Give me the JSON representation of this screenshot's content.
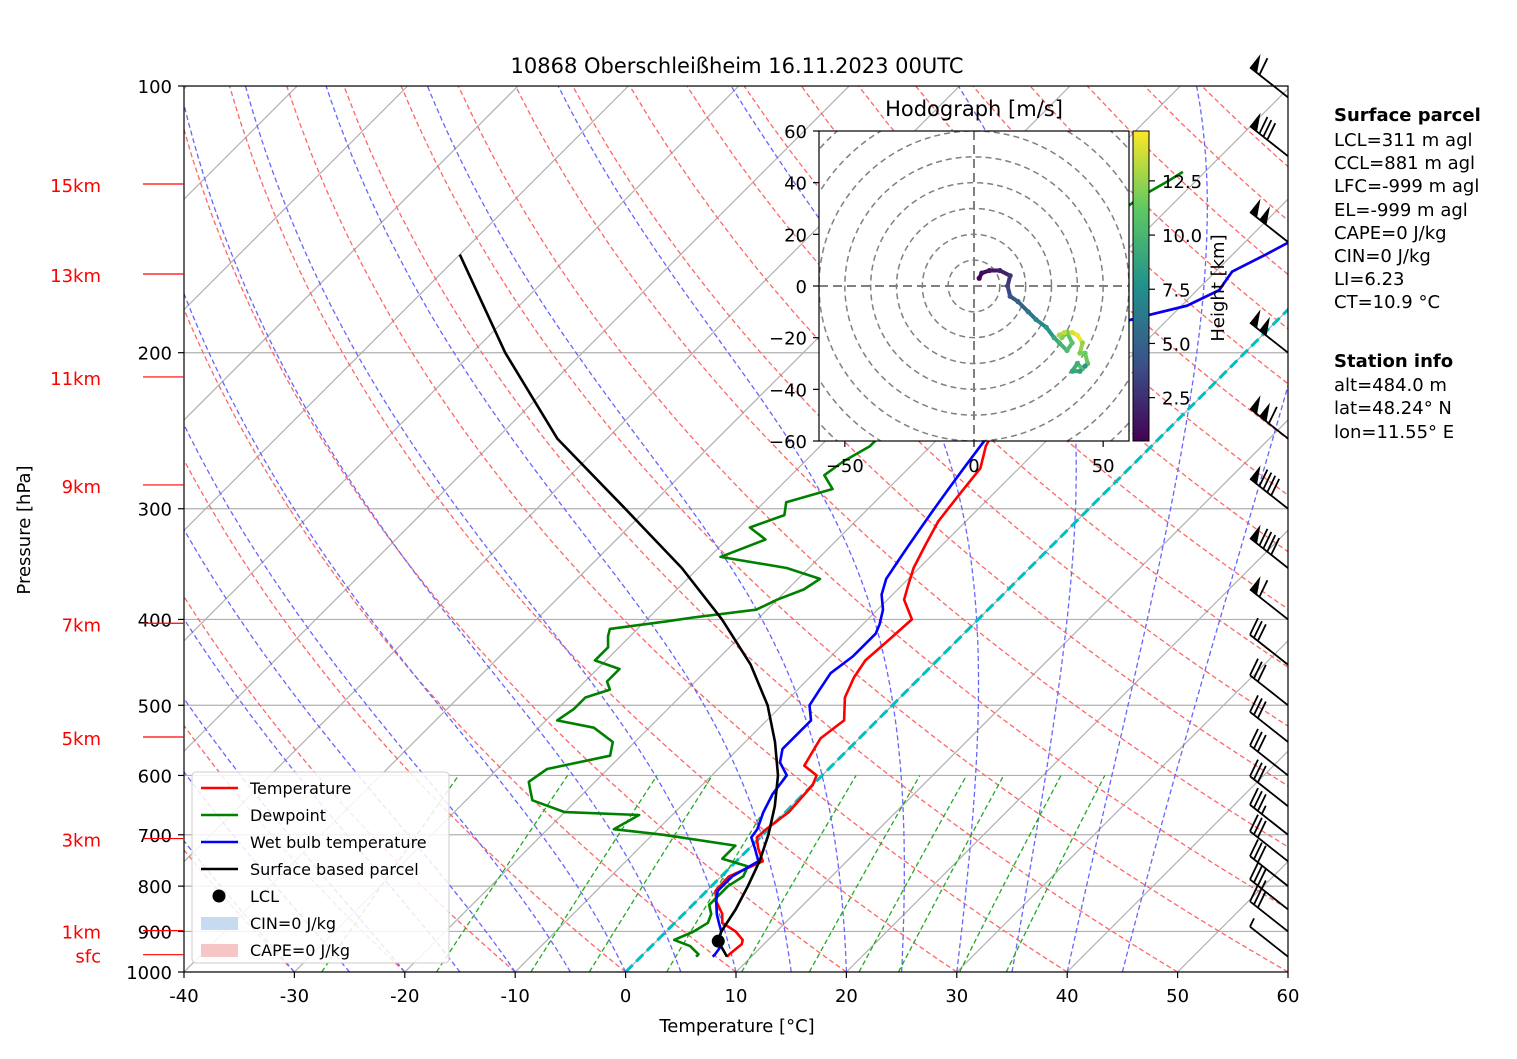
{
  "title": "10868 Oberschleißheim 16.11.2023 00UTC",
  "chart_data": {
    "type": "line",
    "subtype": "skew-T log-P diagram",
    "xlabel": "Temperature [°C]",
    "ylabel": "Pressure [hPa]",
    "xlim": [
      -40,
      60
    ],
    "ylim": [
      1000,
      100
    ],
    "y_scale": "log",
    "x_ticks": [
      -40,
      -30,
      -20,
      -10,
      0,
      10,
      20,
      30,
      40,
      50,
      60
    ],
    "y_ticks": [
      100,
      200,
      300,
      400,
      500,
      600,
      700,
      800,
      900,
      1000
    ],
    "height_labels": [
      {
        "label": "15km",
        "p": 129
      },
      {
        "label": "13km",
        "p": 163
      },
      {
        "label": "11km",
        "p": 213
      },
      {
        "label": "9km",
        "p": 282
      },
      {
        "label": "7km",
        "p": 404
      },
      {
        "label": "5km",
        "p": 543
      },
      {
        "label": "3km",
        "p": 707
      },
      {
        "label": "1km",
        "p": 898
      },
      {
        "label": "sfc",
        "p": 956
      }
    ],
    "series": [
      {
        "name": "Temperature",
        "color": "#ff0000",
        "points": [
          [
            7.8,
            961
          ],
          [
            7.8,
            955
          ],
          [
            8.0,
            930
          ],
          [
            7.7,
            920
          ],
          [
            6.3,
            900
          ],
          [
            4.3,
            880
          ],
          [
            3.5,
            860
          ],
          [
            1.8,
            832
          ],
          [
            0.8,
            810
          ],
          [
            0.7,
            780
          ],
          [
            2.4,
            750
          ],
          [
            0.8,
            725
          ],
          [
            -0.3,
            705
          ],
          [
            -0.2,
            690
          ],
          [
            0.3,
            660
          ],
          [
            0.0,
            615
          ],
          [
            -0.5,
            600
          ],
          [
            -2.5,
            585
          ],
          [
            -3.0,
            565
          ],
          [
            -3.5,
            545
          ],
          [
            -3.0,
            520
          ],
          [
            -5.0,
            490
          ],
          [
            -6.0,
            465
          ],
          [
            -6.5,
            445
          ],
          [
            -6.2,
            418
          ],
          [
            -6.0,
            400
          ],
          [
            -8.5,
            380
          ],
          [
            -9.5,
            365
          ],
          [
            -10.5,
            350
          ],
          [
            -11.5,
            330
          ],
          [
            -12.5,
            310
          ],
          [
            -13.0,
            290
          ],
          [
            -13.5,
            270
          ],
          [
            -15.0,
            255
          ],
          [
            -16.0,
            240
          ],
          [
            -17.0,
            230
          ],
          [
            -17.5,
            220
          ],
          [
            -18.0,
            210
          ],
          [
            -17.0,
            200
          ],
          [
            -16.5,
            195
          ],
          [
            -15.0,
            187
          ],
          [
            -12.5,
            182
          ],
          [
            -9.5,
            177
          ],
          [
            -8.0,
            170
          ],
          [
            -8.5,
            162
          ],
          [
            -7.0,
            155
          ],
          [
            -6.0,
            150
          ],
          [
            -4.5,
            145
          ],
          [
            -2.5,
            140
          ],
          [
            -1.5,
            136
          ],
          [
            -0.5,
            132
          ],
          [
            0.5,
            128
          ],
          [
            2.0,
            124
          ],
          [
            2.5,
            120
          ],
          [
            3.5,
            118
          ],
          [
            3.8,
            117
          ]
        ]
      },
      {
        "name": "Dewpoint",
        "color": "#008000",
        "points": [
          [
            5.0,
            961
          ],
          [
            5.0,
            955
          ],
          [
            3.5,
            935
          ],
          [
            1.5,
            920
          ],
          [
            2.5,
            900
          ],
          [
            3.0,
            880
          ],
          [
            2.5,
            860
          ],
          [
            1.5,
            840
          ],
          [
            1.5,
            800
          ],
          [
            2.0,
            780
          ],
          [
            1.5,
            760
          ],
          [
            -1.5,
            745
          ],
          [
            -1.5,
            720
          ],
          [
            -9.0,
            700
          ],
          [
            -14.0,
            690
          ],
          [
            -13.0,
            665
          ],
          [
            -20.0,
            660
          ],
          [
            -24.0,
            640
          ],
          [
            -25.0,
            625
          ],
          [
            -26.0,
            610
          ],
          [
            -25.5,
            590
          ],
          [
            -21.0,
            570
          ],
          [
            -22.0,
            550
          ],
          [
            -25.0,
            530
          ],
          [
            -29.0,
            520
          ],
          [
            -28.5,
            505
          ],
          [
            -28.5,
            490
          ],
          [
            -27.0,
            480
          ],
          [
            -28.0,
            470
          ],
          [
            -28.0,
            455
          ],
          [
            -31.0,
            445
          ],
          [
            -31.0,
            430
          ],
          [
            -32.0,
            418
          ],
          [
            -32.5,
            410
          ],
          [
            -28.0,
            402
          ],
          [
            -26.0,
            398
          ],
          [
            -21.0,
            390
          ],
          [
            -20.0,
            380
          ],
          [
            -18.5,
            370
          ],
          [
            -18.0,
            360
          ],
          [
            -22.0,
            350
          ],
          [
            -29.0,
            340
          ],
          [
            -26.5,
            325
          ],
          [
            -29.0,
            315
          ],
          [
            -27.0,
            305
          ],
          [
            -28.0,
            295
          ],
          [
            -25.0,
            285
          ],
          [
            -27.0,
            275
          ],
          [
            -26.5,
            265
          ],
          [
            -25.5,
            255
          ],
          [
            -25.5,
            240
          ],
          [
            -26.5,
            230
          ],
          [
            -26.5,
            220
          ],
          [
            -27.0,
            210
          ],
          [
            -25.5,
            200
          ],
          [
            -26.0,
            192
          ],
          [
            -27.0,
            185
          ],
          [
            -27.0,
            178
          ],
          [
            -27.5,
            170
          ],
          [
            -27.0,
            163
          ],
          [
            -27.0,
            155
          ],
          [
            -26.0,
            150
          ],
          [
            -25.5,
            144
          ],
          [
            -24.0,
            138
          ],
          [
            -23.5,
            133
          ],
          [
            -22.5,
            128
          ],
          [
            -22.0,
            125
          ]
        ]
      },
      {
        "name": "Wet bulb temperature",
        "color": "#0000ff",
        "points": [
          [
            6.5,
            961
          ],
          [
            6.5,
            955
          ],
          [
            6.3,
            935
          ],
          [
            5.5,
            920
          ],
          [
            5.0,
            900
          ],
          [
            4.0,
            880
          ],
          [
            3.0,
            860
          ],
          [
            1.8,
            832
          ],
          [
            1.0,
            810
          ],
          [
            1.0,
            780
          ],
          [
            2.0,
            750
          ],
          [
            0.5,
            725
          ],
          [
            -0.8,
            705
          ],
          [
            -1.0,
            690
          ],
          [
            -2.0,
            660
          ],
          [
            -2.8,
            630
          ],
          [
            -3.2,
            600
          ],
          [
            -5.0,
            580
          ],
          [
            -6.0,
            560
          ],
          [
            -6.0,
            540
          ],
          [
            -6.0,
            520
          ],
          [
            -7.5,
            500
          ],
          [
            -8.0,
            480
          ],
          [
            -8.5,
            460
          ],
          [
            -8.0,
            440
          ],
          [
            -8.0,
            415
          ],
          [
            -8.5,
            405
          ],
          [
            -9.5,
            390
          ],
          [
            -11.0,
            375
          ],
          [
            -12.0,
            360
          ],
          [
            -12.5,
            345
          ],
          [
            -13.0,
            330
          ],
          [
            -13.5,
            315
          ],
          [
            -14.0,
            300
          ],
          [
            -14.5,
            285
          ],
          [
            -15.0,
            270
          ],
          [
            -15.5,
            255
          ],
          [
            -16.0,
            240
          ],
          [
            -17.0,
            230
          ],
          [
            -17.5,
            220
          ],
          [
            -18.0,
            210
          ],
          [
            -17.0,
            200
          ],
          [
            -16.5,
            195
          ],
          [
            -15.0,
            187
          ],
          [
            -12.5,
            182
          ],
          [
            -9.5,
            177
          ],
          [
            -8.0,
            170
          ],
          [
            -8.5,
            162
          ],
          [
            -7.0,
            155
          ],
          [
            -6.0,
            150
          ],
          [
            -4.5,
            145
          ],
          [
            -2.5,
            140
          ],
          [
            -1.5,
            136
          ],
          [
            -0.5,
            132
          ],
          [
            0.5,
            128
          ],
          [
            2.0,
            124
          ],
          [
            2.5,
            120
          ],
          [
            3.5,
            118
          ],
          [
            3.8,
            117
          ]
        ]
      },
      {
        "name": "Surface based parcel",
        "color": "#000000",
        "points": [
          [
            7.8,
            961
          ],
          [
            5.6,
            923
          ],
          [
            5.0,
            900
          ],
          [
            4.3,
            850
          ],
          [
            3.3,
            800
          ],
          [
            2.1,
            750
          ],
          [
            0.5,
            700
          ],
          [
            -1.5,
            650
          ],
          [
            -4.0,
            600
          ],
          [
            -7.3,
            550
          ],
          [
            -11.3,
            500
          ],
          [
            -16.5,
            450
          ],
          [
            -23.2,
            400
          ],
          [
            -31.5,
            350
          ],
          [
            -42.0,
            300
          ],
          [
            -54.5,
            250
          ],
          [
            -67.0,
            200
          ],
          [
            -80.0,
            155
          ]
        ]
      }
    ],
    "lcl": {
      "label": "LCL",
      "t": 5.6,
      "p": 923
    },
    "legend": {
      "placement": "lower-left",
      "entries": [
        "Temperature",
        "Dewpoint",
        "Wet bulb temperature",
        "Surface based parcel",
        "LCL",
        "CIN=0 J/kg",
        "CAPE=0 J/kg"
      ]
    },
    "wind_barbs": [
      {
        "p": 961,
        "flags": 0,
        "full": 0,
        "half": 1
      },
      {
        "p": 900,
        "flags": 0,
        "full": 3,
        "half": 0
      },
      {
        "p": 850,
        "flags": 0,
        "full": 3,
        "half": 1
      },
      {
        "p": 800,
        "flags": 0,
        "full": 3,
        "half": 0
      },
      {
        "p": 750,
        "flags": 0,
        "full": 3,
        "half": 0
      },
      {
        "p": 700,
        "flags": 0,
        "full": 3,
        "half": 1
      },
      {
        "p": 650,
        "flags": 0,
        "full": 3,
        "half": 0
      },
      {
        "p": 600,
        "flags": 0,
        "full": 3,
        "half": 0
      },
      {
        "p": 550,
        "flags": 0,
        "full": 3,
        "half": 0
      },
      {
        "p": 500,
        "flags": 0,
        "full": 3,
        "half": 0
      },
      {
        "p": 450,
        "flags": 0,
        "full": 3,
        "half": 0
      },
      {
        "p": 400,
        "flags": 1,
        "full": 1,
        "half": 0
      },
      {
        "p": 350,
        "flags": 1,
        "full": 4,
        "half": 0
      },
      {
        "p": 300,
        "flags": 1,
        "full": 4,
        "half": 0
      },
      {
        "p": 250,
        "flags": 2,
        "full": 1,
        "half": 0
      },
      {
        "p": 200,
        "flags": 2,
        "full": 0,
        "half": 0
      },
      {
        "p": 150,
        "flags": 2,
        "full": 0,
        "half": 0
      },
      {
        "p": 120,
        "flags": 1,
        "full": 3,
        "half": 0
      },
      {
        "p": 103,
        "flags": 1,
        "full": 1,
        "half": 0
      }
    ],
    "hodograph": {
      "title": "Hodograph [m/s]",
      "xlim": [
        -60,
        60
      ],
      "ylim": [
        -60,
        60
      ],
      "x_ticks": [
        -50,
        0,
        50
      ],
      "y_ticks": [
        -60,
        -40,
        -20,
        0,
        20,
        40,
        60
      ],
      "colorbar_label": "Height [km]",
      "colorbar_ticks": [
        2.5,
        5.0,
        7.5,
        10.0,
        12.5
      ],
      "colorbar_range": [
        0.5,
        14.8
      ],
      "points": [
        [
          2,
          3,
          0.5
        ],
        [
          3,
          5,
          1.0
        ],
        [
          6,
          6,
          1.5
        ],
        [
          10,
          6,
          2.0
        ],
        [
          14,
          4,
          2.8
        ],
        [
          13,
          0,
          3.5
        ],
        [
          14,
          -4,
          4.2
        ],
        [
          17,
          -6,
          5.0
        ],
        [
          21,
          -10,
          6.0
        ],
        [
          24,
          -13,
          7.0
        ],
        [
          28,
          -16,
          8.0
        ],
        [
          31,
          -20,
          9.0
        ],
        [
          33,
          -22,
          9.8
        ],
        [
          36,
          -25,
          10.5
        ],
        [
          38,
          -22,
          11.0
        ],
        [
          36,
          -18,
          11.5
        ],
        [
          34,
          -20,
          12.0
        ],
        [
          33,
          -19,
          13.0
        ],
        [
          35,
          -18,
          13.5
        ],
        [
          38,
          -18,
          14.0
        ],
        [
          40,
          -19,
          14.5
        ],
        [
          42,
          -22,
          12.5
        ],
        [
          41,
          -26,
          11.8
        ],
        [
          43,
          -26,
          11.5
        ],
        [
          44,
          -30,
          11.0
        ],
        [
          42,
          -32,
          10.5
        ],
        [
          40,
          -30,
          9.5
        ],
        [
          38,
          -33,
          9.0
        ],
        [
          41,
          -33,
          8.5
        ],
        [
          43,
          -31,
          8.0
        ]
      ]
    }
  },
  "info": {
    "surface_header": "Surface parcel",
    "surface_lines": [
      "LCL=311 m agl",
      "CCL=881 m agl",
      "LFC=-999 m agl",
      "EL=-999 m agl",
      "CAPE=0 J/kg",
      "CIN=0 J/kg",
      "LI=6.23",
      "CT=10.9 °C"
    ],
    "station_header": "Station info",
    "station_lines": [
      "alt=484.0 m",
      "lat=48.24° N",
      "lon=11.55° E"
    ]
  }
}
